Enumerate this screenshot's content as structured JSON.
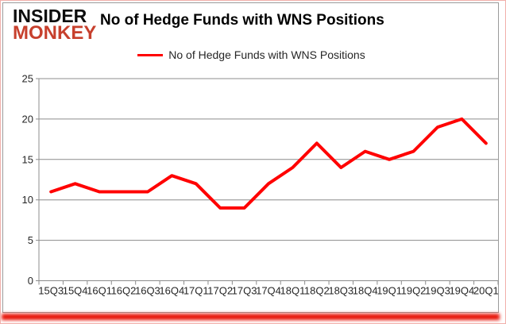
{
  "logo": {
    "line1": "INSIDER",
    "line2": "MONKEY"
  },
  "header": {
    "title": "No of Hedge Funds with WNS Positions"
  },
  "legend": {
    "label": "No of Hedge Funds with WNS Positions"
  },
  "colors": {
    "line_red": "#ff0000",
    "brand_red": "#c7402d",
    "shadow_red": "#e81408",
    "border_pink": "#f1b0ab",
    "gridline_gray": "#8c8c8c",
    "tick_label": "#262626"
  },
  "chart_data": {
    "type": "line",
    "title": "No of Hedge Funds with WNS Positions",
    "categories": [
      "15Q3",
      "15Q4",
      "16Q1",
      "16Q2",
      "16Q3",
      "16Q4",
      "17Q1",
      "17Q2",
      "17Q3",
      "17Q4",
      "18Q1",
      "18Q2",
      "18Q3",
      "18Q4",
      "19Q1",
      "19Q2",
      "19Q3",
      "19Q4",
      "20Q1"
    ],
    "series": [
      {
        "name": "No of Hedge Funds with WNS Positions",
        "color": "#ff0000",
        "values": [
          11,
          12,
          11,
          11,
          11,
          13,
          12,
          9,
          9,
          12,
          14,
          17,
          14,
          16,
          15,
          16,
          19,
          20,
          17
        ]
      }
    ],
    "xlabel": "",
    "ylabel": "",
    "ylim": [
      0,
      25
    ],
    "yticks": [
      0,
      5,
      10,
      15,
      20,
      25
    ],
    "grid": true,
    "legend_position": "top-center"
  }
}
